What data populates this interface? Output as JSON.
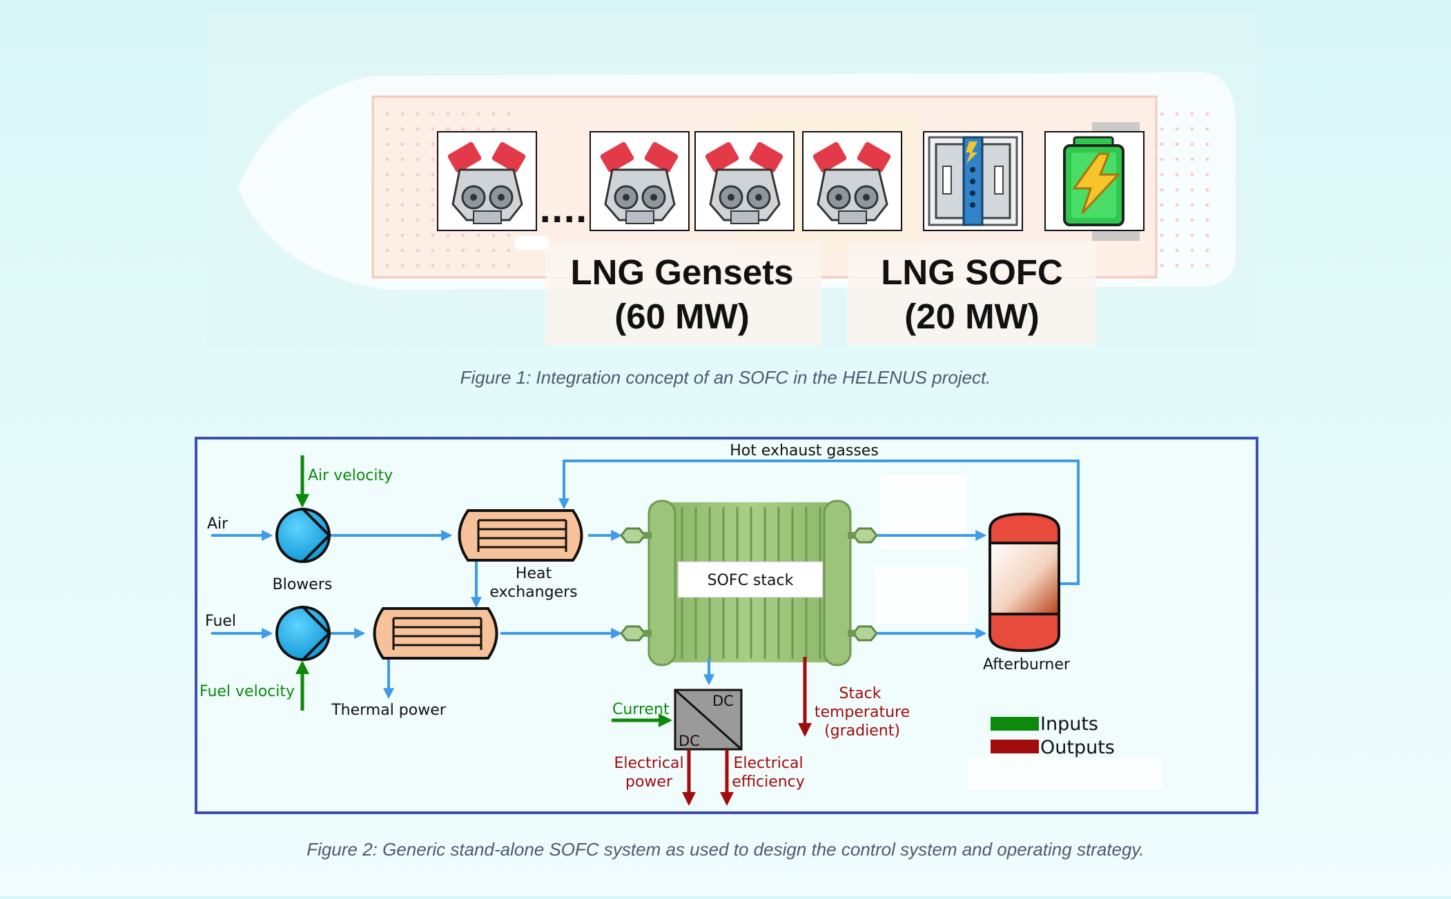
{
  "figure1": {
    "gensets_label": "LNG Gensets",
    "gensets_power": "(60 MW)",
    "sofc_label": "LNG SOFC",
    "sofc_power": "(20 MW)",
    "ellipsis": "....",
    "caption": "Figure 1: Integration concept of an SOFC in the HELENUS project."
  },
  "figure2": {
    "hot_exhaust": "Hot exhaust gasses",
    "air_velocity": "Air velocity",
    "air": "Air",
    "blowers": "Blowers",
    "fuel": "Fuel",
    "fuel_velocity": "Fuel velocity",
    "heat_exchangers_1": "Heat",
    "heat_exchangers_2": "exchangers",
    "thermal_power": "Thermal power",
    "sofc_stack": "SOFC stack",
    "current": "Current",
    "dc_top": "DC",
    "dc_bottom": "DC",
    "electrical_power_1": "Electrical",
    "electrical_power_2": "power",
    "electrical_efficiency_1": "Electrical",
    "electrical_efficiency_2": "efficiency",
    "stack_temp_1": "Stack",
    "stack_temp_2": "temperature",
    "stack_temp_3": "(gradient)",
    "afterburner": "Afterburner",
    "legend_inputs": "Inputs",
    "legend_outputs": "Outputs",
    "caption": "Figure 2: Generic stand-alone SOFC system as used to design the control system and operating strategy."
  },
  "colors": {
    "flow_blue": "#3d9be9",
    "input_green": "#0b8a0b",
    "output_red": "#a10c0c",
    "frame_blue": "#3b4fb3",
    "heat_exchanger": "#f7c29a",
    "stack_green": "#9dc47b",
    "afterburner_red": "#e84a3c",
    "blower_blue": "#20b3e8"
  }
}
